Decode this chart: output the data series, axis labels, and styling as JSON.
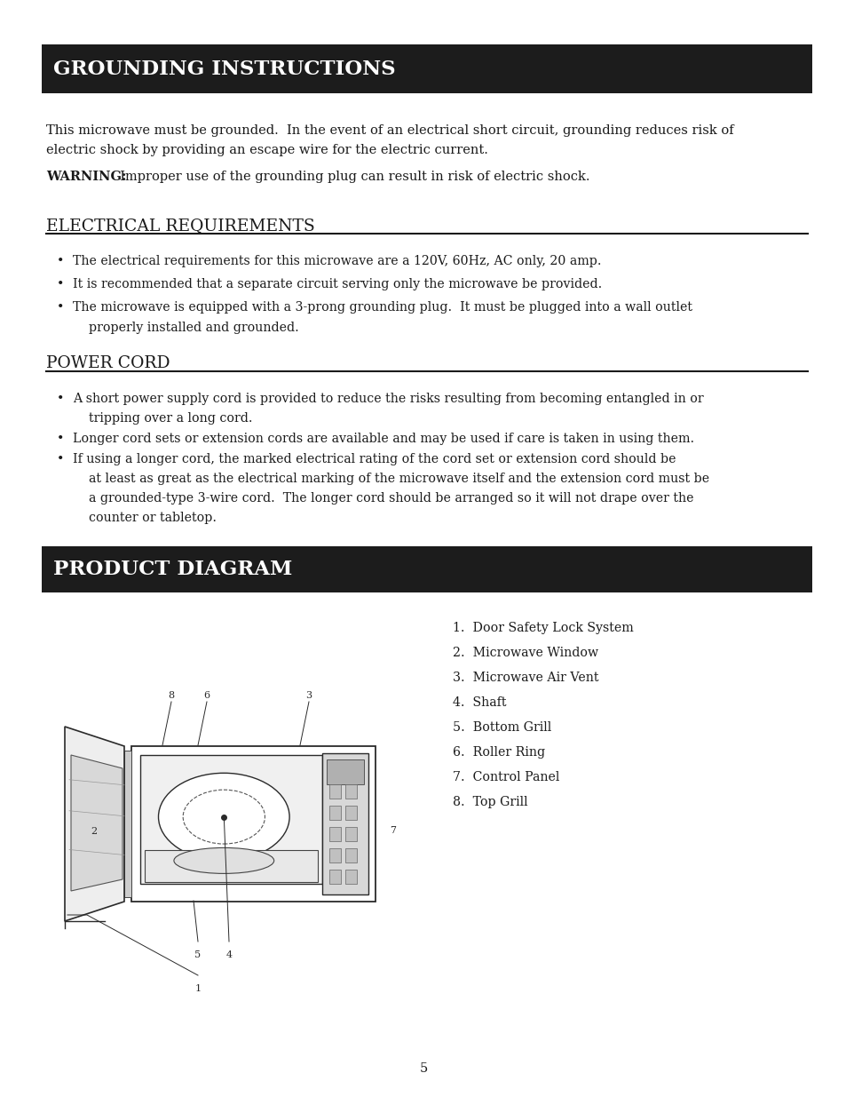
{
  "bg_color": "#ffffff",
  "lm": 0.055,
  "rm": 0.955,
  "header1_text": "GROUNDING INSTRUCTIONS",
  "header1_bg": "#1c1c1c",
  "header1_fg": "#ffffff",
  "header2_text": "PRODUCT DIAGRAM",
  "header2_bg": "#1c1c1c",
  "header2_fg": "#ffffff",
  "para1_line1": "This microwave must be grounded.  In the event of an electrical short circuit, grounding reduces risk of",
  "para1_line2": "electric shock by providing an escape wire for the electric current.",
  "warning_bold": "WARNING:",
  "warning_rest": "  Improper use of the grounding plug can result in risk of electric shock.",
  "sec1_title": "ELECTRICAL REQUIREMENTS",
  "bullets1": [
    "The electrical requirements for this microwave are a 120V, 60Hz, AC only, 20 amp.",
    "It is recommended that a separate circuit serving only the microwave be provided.",
    "The microwave is equipped with a 3-prong grounding plug.  It must be plugged into a wall outlet",
    "    properly installed and grounded."
  ],
  "sec2_title": "POWER CORD",
  "bullets2_line1": "A short power supply cord is provided to reduce the risks resulting from becoming entangled in or",
  "bullets2_line2": "    tripping over a long cord.",
  "bullets2_line3": "Longer cord sets or extension cords are available and may be used if care is taken in using them.",
  "bullets2_line4": "If using a longer cord, the marked electrical rating of the cord set or extension cord should be",
  "bullets2_line5": "    at least as great as the electrical marking of the microwave itself and the extension cord must be",
  "bullets2_line6": "    a grounded-type 3-wire cord.  The longer cord should be arranged so it will not drape over the",
  "bullets2_line7": "    counter or tabletop.",
  "diagram_items": [
    "1.  Door Safety Lock System",
    "2.  Microwave Window",
    "3.  Microwave Air Vent",
    "4.  Shaft",
    "5.  Bottom Grill",
    "6.  Roller Ring",
    "7.  Control Panel",
    "8.  Top Grill"
  ],
  "page_number": "5",
  "body_fontsize": 10.5,
  "bullet_fontsize": 10.2,
  "section_fontsize": 13.5,
  "header_fontsize": 16.5,
  "small_fontsize": 8.0
}
